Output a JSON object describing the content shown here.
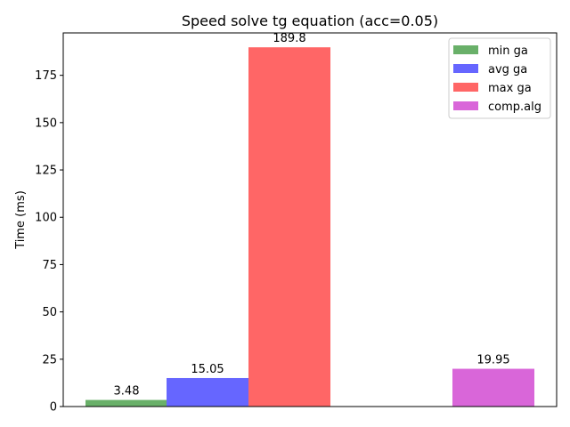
{
  "chart_data": {
    "type": "bar",
    "title": "Speed solve tg equation (acc=0.05)",
    "xlabel": "",
    "ylabel": "Time (ms)",
    "ylim": [
      0,
      197.4
    ],
    "yticks": [
      0,
      25,
      50,
      75,
      100,
      125,
      150,
      175
    ],
    "grid": false,
    "legend_position": "top-right",
    "series": [
      {
        "name": "min ga",
        "value": 3.48,
        "label": "3.48",
        "color": "#69b069"
      },
      {
        "name": "avg ga",
        "value": 15.05,
        "label": "15.05",
        "color": "#6666ff"
      },
      {
        "name": "max ga",
        "value": 189.8,
        "label": "189.8",
        "color": "#ff6666"
      },
      {
        "name": "comp.alg",
        "value": 19.95,
        "label": "19.95",
        "color": "#d966d9"
      }
    ]
  }
}
